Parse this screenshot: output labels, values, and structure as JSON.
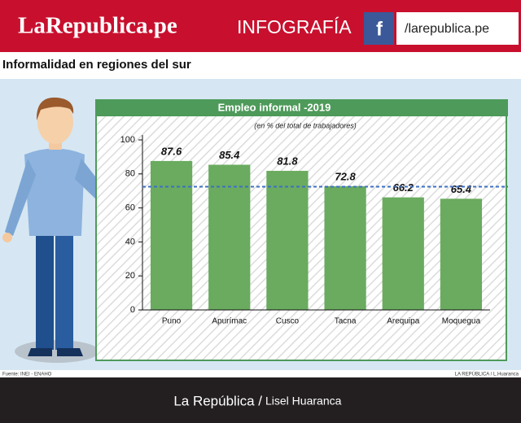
{
  "header": {
    "brand": "LaRepublica.pe",
    "section": "INFOGRAFÍA",
    "social_icon": "f",
    "social_handle": "/larepublica.pe"
  },
  "page_title": "Informalidad en regiones del sur",
  "chart_data": {
    "type": "bar",
    "title": "Empleo informal -2019",
    "subtitle": "(en % del total de trabajadores)",
    "categories": [
      "Puno",
      "Apurímac",
      "Cusco",
      "Tacna",
      "Arequipa",
      "Moquegua"
    ],
    "values": [
      87.6,
      85.4,
      81.8,
      72.8,
      66.2,
      65.4
    ],
    "color": "#6aab5f",
    "ylim": [
      0,
      100
    ],
    "yticks": [
      0,
      20,
      40,
      60,
      80,
      100
    ],
    "reference_line": 72.5,
    "reference_color": "#3d6fc4"
  },
  "footer": {
    "source": "Fuente: INEI - ENAHO",
    "signature": "LA REPÚBLICA / L.Huaranca",
    "credit_outlet": "La República /",
    "credit_author": "Lisel Huaranca"
  }
}
